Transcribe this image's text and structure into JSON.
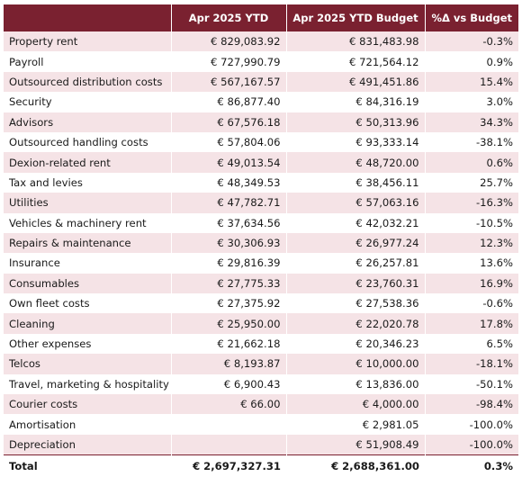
{
  "table": {
    "headers": [
      "",
      "Apr 2025 YTD",
      "Apr 2025 YTD Budget",
      "%Δ vs Budget"
    ],
    "rows": [
      {
        "label": "Property rent",
        "ytd": "€ 829,083.92",
        "budget": "€ 831,483.98",
        "pct": "-0.3%"
      },
      {
        "label": "Payroll",
        "ytd": "€ 727,990.79",
        "budget": "€ 721,564.12",
        "pct": "0.9%"
      },
      {
        "label": "Outsourced distribution costs",
        "ytd": "€ 567,167.57",
        "budget": "€ 491,451.86",
        "pct": "15.4%"
      },
      {
        "label": "Security",
        "ytd": "€ 86,877.40",
        "budget": "€ 84,316.19",
        "pct": "3.0%"
      },
      {
        "label": "Advisors",
        "ytd": "€ 67,576.18",
        "budget": "€ 50,313.96",
        "pct": "34.3%"
      },
      {
        "label": "Outsourced handling costs",
        "ytd": "€ 57,804.06",
        "budget": "€ 93,333.14",
        "pct": "-38.1%"
      },
      {
        "label": "Dexion-related rent",
        "ytd": "€ 49,013.54",
        "budget": "€ 48,720.00",
        "pct": "0.6%"
      },
      {
        "label": "Tax and levies",
        "ytd": "€ 48,349.53",
        "budget": "€ 38,456.11",
        "pct": "25.7%"
      },
      {
        "label": "Utilities",
        "ytd": "€ 47,782.71",
        "budget": "€ 57,063.16",
        "pct": "-16.3%"
      },
      {
        "label": "Vehicles & machinery rent",
        "ytd": "€ 37,634.56",
        "budget": "€ 42,032.21",
        "pct": "-10.5%"
      },
      {
        "label": "Repairs & maintenance",
        "ytd": "€ 30,306.93",
        "budget": "€ 26,977.24",
        "pct": "12.3%"
      },
      {
        "label": "Insurance",
        "ytd": "€ 29,816.39",
        "budget": "€ 26,257.81",
        "pct": "13.6%"
      },
      {
        "label": "Consumables",
        "ytd": "€ 27,775.33",
        "budget": "€ 23,760.31",
        "pct": "16.9%"
      },
      {
        "label": "Own fleet costs",
        "ytd": "€ 27,375.92",
        "budget": "€ 27,538.36",
        "pct": "-0.6%"
      },
      {
        "label": "Cleaning",
        "ytd": "€ 25,950.00",
        "budget": "€ 22,020.78",
        "pct": "17.8%"
      },
      {
        "label": "Other expenses",
        "ytd": "€ 21,662.18",
        "budget": "€ 20,346.23",
        "pct": "6.5%"
      },
      {
        "label": "Telcos",
        "ytd": "€ 8,193.87",
        "budget": "€ 10,000.00",
        "pct": "-18.1%"
      },
      {
        "label": "Travel, marketing & hospitality",
        "ytd": "€ 6,900.43",
        "budget": "€ 13,836.00",
        "pct": "-50.1%"
      },
      {
        "label": "Courier costs",
        "ytd": "€ 66.00",
        "budget": "€ 4,000.00",
        "pct": "-98.4%"
      },
      {
        "label": "Amortisation",
        "ytd": "",
        "budget": "€ 2,981.05",
        "pct": "-100.0%"
      },
      {
        "label": "Depreciation",
        "ytd": "",
        "budget": "€ 51,908.49",
        "pct": "-100.0%"
      }
    ],
    "total": {
      "label": "Total",
      "ytd": "€ 2,697,327.31",
      "budget": "€ 2,688,361.00",
      "pct": "0.3%"
    }
  },
  "colors": {
    "header_bg": "#7a2130",
    "band_bg": "#f5e3e6"
  }
}
